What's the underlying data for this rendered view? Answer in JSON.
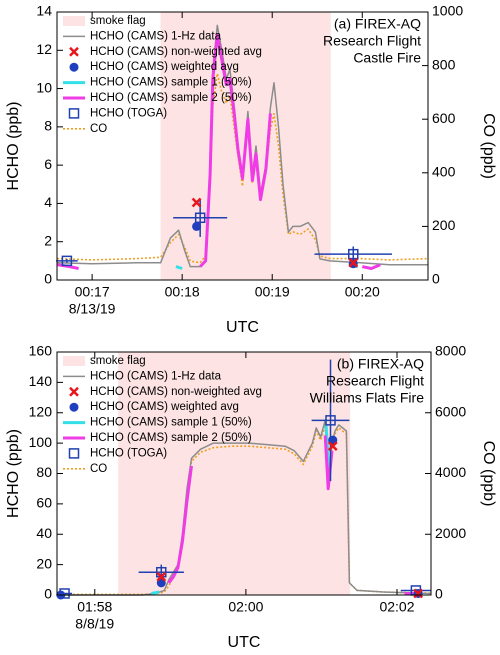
{
  "chart_data": [
    {
      "type": "line",
      "annotation": [
        "(a) FIREX-AQ",
        "Research Flight",
        "Castle Fire"
      ],
      "xlabel": "UTC",
      "ylabel": "HCHO (ppb)",
      "y2label": "CO (ppb)",
      "date_label": "8/13/19",
      "xlim": [
        16.61,
        20.73
      ],
      "xticks": [
        {
          "value": 17,
          "label": "00:17"
        },
        {
          "value": 18,
          "label": "00:18"
        },
        {
          "value": 19,
          "label": "00:19"
        },
        {
          "value": 20,
          "label": "00:20"
        }
      ],
      "ylim": [
        0,
        14
      ],
      "yticks": [
        0,
        2,
        4,
        6,
        8,
        10,
        12,
        14
      ],
      "y2lim": [
        0,
        1000
      ],
      "y2ticks": [
        0,
        200,
        400,
        600,
        800,
        1000
      ],
      "series": [
        {
          "name": "smoke flag",
          "kind": "span",
          "color": "#fde3e3",
          "x": [
            17.76,
            19.65
          ]
        },
        {
          "name": "HCHO (CAMS) 1-Hz data",
          "kind": "line",
          "color": "#8c8c8c",
          "x": [
            16.61,
            17.0,
            17.5,
            17.76,
            17.87,
            17.96,
            18.03,
            18.09,
            18.2,
            18.26,
            18.31,
            18.34,
            18.39,
            18.44,
            18.49,
            18.53,
            18.58,
            18.62,
            18.67,
            18.73,
            18.78,
            18.82,
            18.87,
            18.93,
            18.98,
            19.02,
            19.07,
            19.12,
            19.18,
            19.23,
            19.31,
            19.4,
            19.48,
            19.53,
            19.64,
            19.98,
            20.3,
            20.73
          ],
          "values": [
            0.9,
            0.85,
            0.9,
            0.9,
            2.2,
            2.6,
            1.5,
            0.7,
            0.7,
            1.0,
            6,
            11,
            13.3,
            12,
            10.5,
            11,
            9,
            7,
            5.5,
            8.8,
            5.5,
            7,
            4.5,
            6,
            9,
            10.3,
            8,
            5,
            2.5,
            2.8,
            2.8,
            3.0,
            2.5,
            1.1,
            1.0,
            0.9,
            0.8,
            0.8
          ]
        },
        {
          "name": "HCHO (CAMS) non-weighted avg",
          "kind": "marker",
          "marker": "x",
          "color": "#e8151b",
          "x": [
            18.16,
            19.9
          ],
          "values": [
            4.05,
            0.9
          ]
        },
        {
          "name": "HCHO (CAMS) weighted avg",
          "kind": "marker",
          "marker": "circle",
          "color": "#1f3fbf",
          "x": [
            18.16,
            19.9
          ],
          "values": [
            2.8,
            0.85
          ]
        },
        {
          "name": "HCHO (CAMS) sample 1 (50%)",
          "kind": "line",
          "color": "#33e0e8",
          "x": [
            17.93,
            18.0,
            18.05,
            19.85,
            19.95
          ],
          "values": [
            0.7,
            0.6,
            null,
            0.8,
            0.7
          ]
        },
        {
          "name": "HCHO (CAMS) sample 2 (50%)",
          "kind": "line",
          "color": "#f03ce6",
          "x": [
            16.61,
            16.75,
            16.85,
            16.9,
            18.2,
            18.26,
            18.31,
            18.34,
            18.39,
            18.44,
            18.49,
            18.53,
            18.58,
            18.62,
            18.67,
            18.73,
            18.78,
            18.82,
            18.87,
            18.93,
            18.98,
            19.02,
            20.0,
            20.1,
            20.2
          ],
          "values": [
            0.8,
            0.7,
            0.6,
            null,
            0.7,
            1.0,
            5.5,
            10.5,
            12.8,
            11.5,
            10.2,
            10.5,
            8.6,
            6.8,
            5.3,
            8.4,
            5.2,
            6.6,
            4.2,
            5.8,
            8.7,
            null,
            0.7,
            0.6,
            0.8
          ]
        },
        {
          "name": "HCHO (TOGA)",
          "kind": "marker",
          "marker": "square",
          "color": "#2040b0",
          "x": [
            16.72,
            18.2,
            19.9
          ],
          "values": [
            1.0,
            3.25,
            1.35
          ],
          "x_err": [
            0.12,
            0.3,
            0.43
          ],
          "y_err": [
            0.1,
            1.0,
            0.4
          ]
        },
        {
          "name": "CO",
          "kind": "line",
          "dash": true,
          "axis": "y2",
          "color": "#f0a020",
          "x": [
            16.61,
            17.0,
            17.5,
            17.76,
            17.87,
            17.96,
            18.03,
            18.09,
            18.2,
            18.26,
            18.31,
            18.34,
            18.39,
            18.44,
            18.49,
            18.53,
            18.58,
            18.62,
            18.67,
            18.73,
            18.78,
            18.82,
            18.87,
            18.93,
            18.98,
            19.02,
            19.07,
            19.12,
            19.18,
            19.23,
            19.31,
            19.4,
            19.48,
            19.53,
            19.64,
            19.98,
            20.3,
            20.73
          ],
          "values": [
            80,
            75,
            80,
            85,
            140,
            170,
            120,
            70,
            65,
            90,
            350,
            650,
            770,
            700,
            660,
            690,
            560,
            460,
            350,
            600,
            360,
            440,
            300,
            400,
            560,
            620,
            500,
            320,
            170,
            180,
            170,
            190,
            150,
            90,
            80,
            80,
            75,
            80
          ]
        }
      ]
    },
    {
      "type": "line",
      "annotation": [
        "(b) FIREX-AQ",
        "Research Flight",
        "Williams Flats Fire"
      ],
      "xlabel": "UTC",
      "ylabel": "HCHO (ppb)",
      "y2label": "CO (ppb)",
      "date_label": "8/8/19",
      "xlim": [
        117.5,
        122.45
      ],
      "xticks": [
        {
          "value": 118,
          "label": "01:58"
        },
        {
          "value": 120,
          "label": "02:00"
        },
        {
          "value": 122,
          "label": "02:02"
        }
      ],
      "ylim": [
        0,
        160
      ],
      "yticks": [
        0,
        20,
        40,
        60,
        80,
        100,
        120,
        140,
        160
      ],
      "y2lim": [
        0,
        8000
      ],
      "y2ticks": [
        0,
        2000,
        4000,
        6000,
        8000
      ],
      "series": [
        {
          "name": "smoke flag",
          "kind": "span",
          "color": "#fde3e3",
          "x": [
            118.31,
            121.38
          ]
        },
        {
          "name": "HCHO (CAMS) 1-Hz data",
          "kind": "line",
          "color": "#8c8c8c",
          "x": [
            117.5,
            118.63,
            118.8,
            118.92,
            118.98,
            119.04,
            119.1,
            119.16,
            119.22,
            119.28,
            119.4,
            119.57,
            119.81,
            120.04,
            120.28,
            120.52,
            120.64,
            120.76,
            120.88,
            120.93,
            120.99,
            121.05,
            121.09,
            121.14,
            121.18,
            121.23,
            121.28,
            121.33,
            121.37,
            121.47,
            121.82,
            122.45
          ],
          "values": [
            0,
            0,
            1,
            3,
            10,
            15,
            20,
            40,
            70,
            90,
            96,
            100,
            100,
            100,
            99,
            98,
            95,
            88,
            100,
            110,
            104,
            115,
            70,
            100,
            108,
            112,
            110,
            108,
            8,
            3,
            2,
            1
          ]
        },
        {
          "name": "HCHO (CAMS) non-weighted avg",
          "kind": "marker",
          "marker": "x",
          "color": "#e8151b",
          "x": [
            118.88,
            121.15,
            122.28
          ],
          "values": [
            12,
            98,
            1
          ]
        },
        {
          "name": "HCHO (CAMS) weighted avg",
          "kind": "marker",
          "marker": "circle",
          "color": "#1f3fbf",
          "x": [
            117.55,
            118.88,
            121.15,
            122.28
          ],
          "values": [
            0,
            8,
            102,
            1
          ]
        },
        {
          "name": "HCHO (CAMS) sample 1 (50%)",
          "kind": "line",
          "color": "#33e0e8",
          "x": [
            118.75,
            118.85,
            118.9,
            121.06,
            121.1
          ],
          "values": [
            1,
            2,
            null,
            112,
            80
          ]
        },
        {
          "name": "HCHO (CAMS) sample 2 (50%)",
          "kind": "line",
          "color": "#f03ce6",
          "x": [
            117.5,
            117.6,
            117.7,
            118.98,
            119.04,
            119.1,
            119.16,
            119.22,
            119.28,
            119.34,
            121.05,
            121.09,
            121.14,
            121.18,
            122.1,
            122.2,
            122.3
          ],
          "values": [
            0,
            0,
            null,
            8,
            12,
            18,
            35,
            62,
            85,
            null,
            105,
            70,
            95,
            null,
            1,
            1,
            1
          ]
        },
        {
          "name": "HCHO (TOGA)",
          "kind": "marker",
          "marker": "square",
          "color": "#2040b0",
          "x": [
            117.6,
            118.88,
            121.12,
            122.25
          ],
          "values": [
            1,
            15,
            115,
            3
          ],
          "x_err": [
            0.1,
            0.3,
            0.25,
            0.2
          ],
          "y_err": [
            0,
            5,
            40,
            1
          ]
        },
        {
          "name": "CO",
          "kind": "line",
          "dash": true,
          "axis": "y2",
          "color": "#f0a020",
          "x": [
            117.5,
            118.63,
            118.8,
            118.92,
            118.98,
            119.04,
            119.1,
            119.16,
            119.22,
            119.28,
            119.4,
            119.57,
            119.81,
            120.04,
            120.28,
            120.52,
            120.64,
            120.76,
            120.88,
            120.93,
            120.99,
            121.05,
            121.09,
            121.14,
            121.18,
            121.23,
            121.28,
            121.33,
            121.37,
            121.47,
            121.82,
            122.45
          ],
          "values": [
            20,
            20,
            40,
            100,
            300,
            600,
            900,
            1800,
            3300,
            4400,
            4700,
            4850,
            4900,
            4900,
            4850,
            4800,
            4650,
            4300,
            4900,
            5400,
            5100,
            5600,
            3600,
            5000,
            5300,
            5500,
            5400,
            5300,
            400,
            150,
            100,
            60
          ]
        }
      ]
    }
  ]
}
